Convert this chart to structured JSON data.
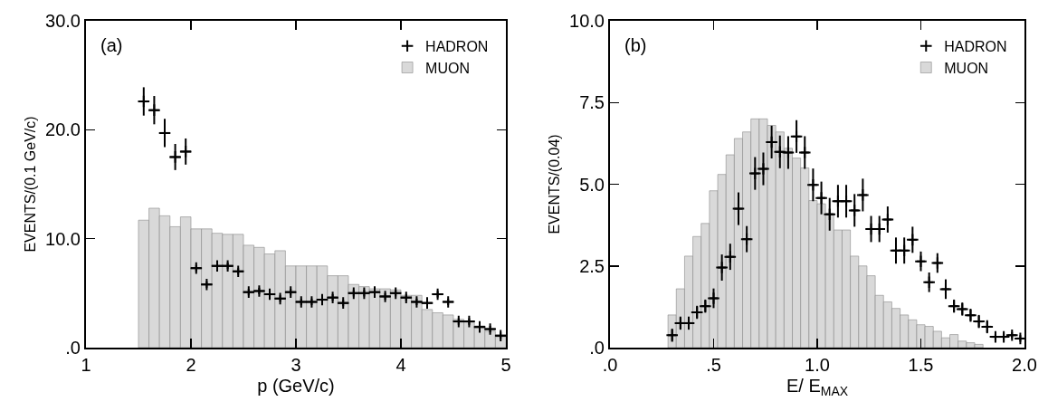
{
  "chart_data": [
    {
      "type": "histogram",
      "annotations": [
        "(a)"
      ],
      "xlabel": "p (GeV/c)",
      "ylabel": "EVENTS/(0.1 GeV/c)",
      "xlim": [
        1,
        5
      ],
      "xticks": [
        1,
        2,
        3,
        4,
        5
      ],
      "ylim": [
        0,
        30
      ],
      "yticks": [
        {
          "value": 0,
          "label": ".0"
        },
        {
          "value": 10,
          "label": "10.0"
        },
        {
          "value": 20,
          "label": "20.0"
        },
        {
          "value": 30,
          "label": "30.0"
        }
      ],
      "grid": false,
      "legend": "top right",
      "marker": "cross",
      "series": [
        {
          "name": "MUON",
          "color": "#d9d9d9",
          "bins": [
            1.5,
            1.6,
            1.7,
            1.8,
            1.9,
            2.0,
            2.1,
            2.2,
            2.3,
            2.4,
            2.5,
            2.6,
            2.7,
            2.8,
            2.9,
            3.0,
            3.1,
            3.2,
            3.3,
            3.4,
            3.5,
            3.6,
            3.7,
            3.8,
            3.9,
            4.0,
            4.1,
            4.2,
            4.3,
            4.4,
            4.5,
            4.6,
            4.7,
            4.8,
            4.9,
            5.0
          ],
          "values": [
            11.7,
            12.8,
            12.1,
            11.1,
            12.0,
            10.9,
            10.9,
            10.5,
            10.4,
            10.4,
            9.4,
            9.2,
            8.6,
            8.9,
            7.5,
            7.5,
            7.5,
            7.5,
            6.6,
            6.6,
            5.8,
            5.6,
            5.4,
            5.4,
            5.3,
            4.8,
            4.8,
            3.5,
            3.2,
            3.0,
            2.6,
            2.4,
            2.0,
            1.5,
            1.0
          ]
        },
        {
          "name": "HADRON",
          "type": "scatter",
          "color": "#000000",
          "x": [
            1.55,
            1.65,
            1.75,
            1.85,
            1.95,
            2.05,
            2.15,
            2.25,
            2.35,
            2.45,
            2.55,
            2.65,
            2.75,
            2.85,
            2.95,
            3.05,
            3.15,
            3.25,
            3.35,
            3.45,
            3.55,
            3.65,
            3.75,
            3.85,
            3.95,
            4.05,
            4.15,
            4.25,
            4.35,
            4.45,
            4.55,
            4.65,
            4.75,
            4.85,
            4.95
          ],
          "values": [
            22.6,
            21.8,
            19.7,
            17.5,
            18.0,
            7.3,
            5.8,
            7.5,
            7.5,
            7.0,
            5.1,
            5.2,
            4.9,
            4.5,
            5.1,
            4.2,
            4.2,
            4.4,
            4.6,
            4.1,
            5.0,
            5.0,
            5.1,
            4.7,
            5.0,
            4.6,
            4.2,
            4.1,
            4.9,
            4.2,
            2.4,
            2.4,
            1.9,
            1.7,
            1.1
          ],
          "errors": [
            1.3,
            1.3,
            1.3,
            1.2,
            1.2,
            0.3,
            0.3,
            0.3,
            0.3,
            0.3,
            0.3,
            0.3,
            0.3,
            0.3,
            0.3,
            0.3,
            0.3,
            0.3,
            0.3,
            0.3,
            0.3,
            0.3,
            0.3,
            0.3,
            0.3,
            0.3,
            0.3,
            0.3,
            0.3,
            0.3,
            0.3,
            0.3,
            0.3,
            0.3,
            0.3
          ],
          "xerrors": [
            0.05,
            0.05,
            0.05,
            0.05,
            0.05,
            0.05,
            0.05,
            0.05,
            0.05,
            0.05,
            0.05,
            0.05,
            0.05,
            0.05,
            0.05,
            0.05,
            0.05,
            0.05,
            0.05,
            0.05,
            0.05,
            0.05,
            0.05,
            0.05,
            0.05,
            0.05,
            0.05,
            0.05,
            0.05,
            0.05,
            0.05,
            0.05,
            0.05,
            0.05,
            0.05
          ]
        }
      ]
    },
    {
      "type": "histogram",
      "annotations": [
        "(b)"
      ],
      "xlabel": "E/ E$_{MAX}$",
      "ylabel": "EVENTS/(0.04)",
      "xlim": [
        0,
        2
      ],
      "xticks": [
        {
          "value": 0,
          "label": ".0"
        },
        {
          "value": 0.5,
          "label": ".5"
        },
        {
          "value": 1,
          "label": "1.0"
        },
        {
          "value": 1.5,
          "label": "1.5"
        },
        {
          "value": 2,
          "label": "2.0"
        }
      ],
      "ylim": [
        0,
        10
      ],
      "yticks": [
        {
          "value": 0,
          "label": ".0"
        },
        {
          "value": 2.5,
          "label": "2.5"
        },
        {
          "value": 5,
          "label": "5.0"
        },
        {
          "value": 7.5,
          "label": "7.5"
        },
        {
          "value": 10,
          "label": "10.0"
        }
      ],
      "grid": false,
      "legend": "top right",
      "marker": "cross",
      "series": [
        {
          "name": "MUON",
          "color": "#d9d9d9",
          "bins": [
            0.28,
            0.32,
            0.36,
            0.4,
            0.44,
            0.48,
            0.52,
            0.56,
            0.6,
            0.64,
            0.68,
            0.72,
            0.76,
            0.8,
            0.84,
            0.88,
            0.92,
            0.96,
            1.0,
            1.04,
            1.08,
            1.12,
            1.16,
            1.2,
            1.24,
            1.28,
            1.32,
            1.36,
            1.4,
            1.44,
            1.48,
            1.52,
            1.56,
            1.6,
            1.64,
            1.68,
            1.72,
            1.76,
            1.8
          ],
          "values": [
            1.0,
            1.8,
            2.8,
            3.4,
            3.8,
            4.8,
            5.3,
            5.9,
            6.4,
            6.6,
            7.0,
            7.0,
            6.8,
            6.6,
            6.1,
            5.8,
            5.5,
            4.5,
            4.4,
            4.1,
            3.6,
            3.6,
            2.8,
            2.5,
            2.2,
            1.6,
            1.4,
            1.2,
            1.0,
            0.85,
            0.7,
            0.65,
            0.5,
            0.3,
            0.4,
            0.2,
            0.15,
            0.1
          ]
        },
        {
          "name": "HADRON",
          "type": "scatter",
          "color": "#000000",
          "x": [
            0.3,
            0.34,
            0.38,
            0.42,
            0.46,
            0.5,
            0.54,
            0.58,
            0.62,
            0.66,
            0.7,
            0.74,
            0.78,
            0.82,
            0.86,
            0.9,
            0.94,
            0.98,
            1.02,
            1.06,
            1.1,
            1.14,
            1.18,
            1.22,
            1.26,
            1.3,
            1.34,
            1.38,
            1.42,
            1.46,
            1.5,
            1.54,
            1.58,
            1.62,
            1.66,
            1.7,
            1.74,
            1.78,
            1.82,
            1.86,
            1.9,
            1.94,
            1.98
          ],
          "values": [
            0.38,
            0.75,
            0.75,
            1.08,
            1.27,
            1.51,
            2.45,
            2.78,
            4.25,
            3.32,
            5.33,
            5.47,
            6.29,
            5.99,
            5.97,
            6.46,
            5.97,
            4.98,
            4.58,
            4.08,
            4.48,
            4.48,
            4.2,
            4.67,
            3.63,
            3.63,
            3.92,
            2.97,
            2.97,
            3.3,
            2.64,
            2.0,
            2.59,
            1.79,
            1.27,
            1.18,
            0.99,
            0.8,
            0.64,
            0.33,
            0.33,
            0.38,
            0.28
          ],
          "errors": [
            0.2,
            0.2,
            0.2,
            0.2,
            0.2,
            0.3,
            0.4,
            0.4,
            0.5,
            0.4,
            0.5,
            0.5,
            0.5,
            0.5,
            0.5,
            0.5,
            0.5,
            0.5,
            0.5,
            0.5,
            0.5,
            0.5,
            0.5,
            0.5,
            0.4,
            0.4,
            0.4,
            0.4,
            0.4,
            0.4,
            0.3,
            0.3,
            0.3,
            0.3,
            0.2,
            0.2,
            0.2,
            0.2,
            0.2,
            0.1,
            0.1,
            0.1,
            0.1
          ],
          "xerrors": [
            0.02,
            0.02,
            0.02,
            0.02,
            0.02,
            0.02,
            0.02,
            0.02,
            0.02,
            0.02,
            0.02,
            0.02,
            0.02,
            0.02,
            0.02,
            0.02,
            0.02,
            0.02,
            0.02,
            0.02,
            0.02,
            0.02,
            0.02,
            0.02,
            0.02,
            0.02,
            0.02,
            0.02,
            0.02,
            0.02,
            0.02,
            0.02,
            0.02,
            0.02,
            0.02,
            0.02,
            0.02,
            0.02,
            0.02,
            0.02,
            0.02,
            0.02,
            0.02
          ]
        }
      ]
    }
  ]
}
